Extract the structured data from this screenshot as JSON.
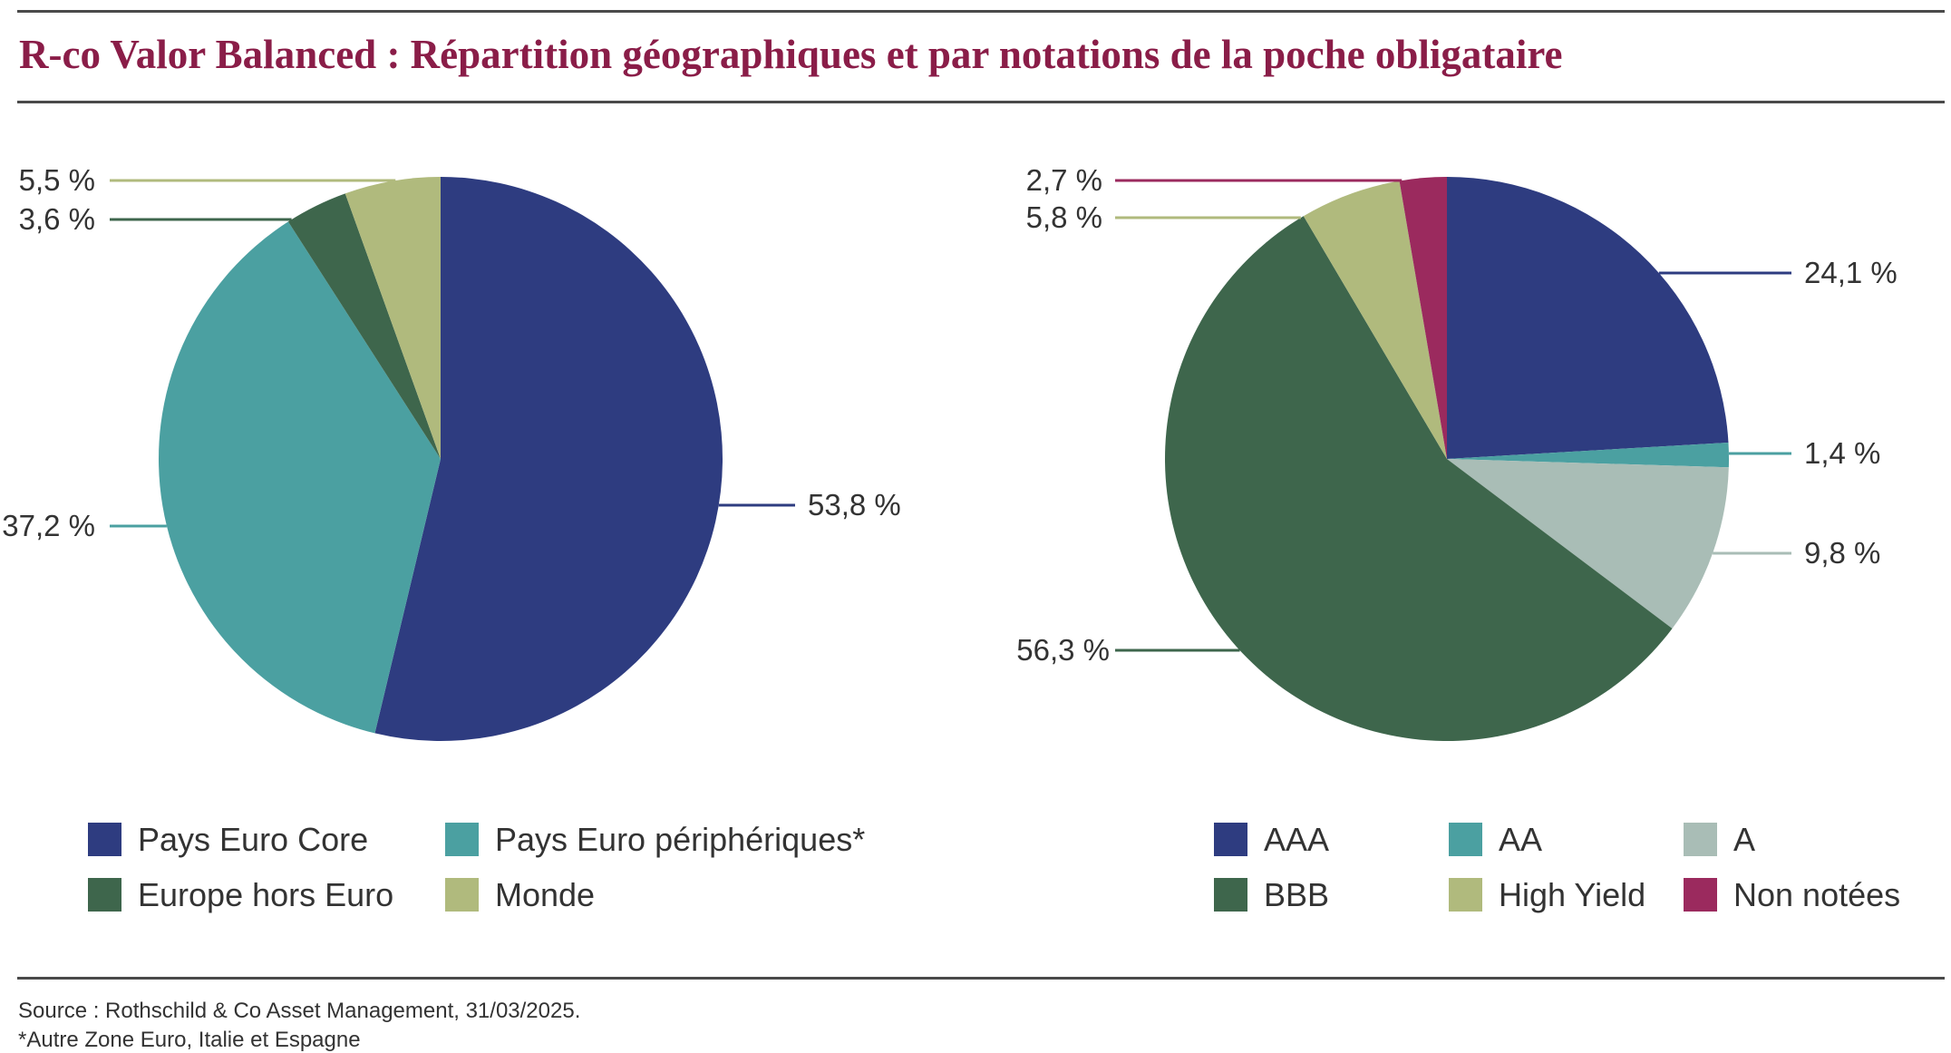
{
  "title": "R-co Valor Balanced : Répartition géographiques et par notations de la poche obligataire",
  "footer": {
    "source": "Source : Rothschild & Co Asset Management, 31/03/2025.",
    "note": "*Autre Zone Euro, Italie et Espagne"
  },
  "chart_data": [
    {
      "type": "pie",
      "title": "",
      "legend_position": "bottom",
      "slices": [
        {
          "name": "Pays Euro Core",
          "value": 53.8,
          "label": "53,8 %",
          "color": "#2e3c80"
        },
        {
          "name": "Pays Euro périphériques*",
          "value": 37.2,
          "label": "37,2 %",
          "color": "#4ba0a1"
        },
        {
          "name": "Europe hors Euro",
          "value": 3.6,
          "label": "3,6 %",
          "color": "#3e664c"
        },
        {
          "name": "Monde",
          "value": 5.5,
          "label": "5,5 %",
          "color": "#b0ba7d"
        }
      ]
    },
    {
      "type": "pie",
      "title": "",
      "legend_position": "bottom",
      "slices": [
        {
          "name": "AAA",
          "value": 24.1,
          "label": "24,1 %",
          "color": "#2e3c80"
        },
        {
          "name": "AA",
          "value": 1.4,
          "label": "1,4 %",
          "color": "#4ba0a1"
        },
        {
          "name": "A",
          "value": 9.8,
          "label": "9,8 %",
          "color": "#a9bdb6"
        },
        {
          "name": "BBB",
          "value": 56.3,
          "label": "56,3 %",
          "color": "#3e664c"
        },
        {
          "name": "High Yield",
          "value": 5.8,
          "label": "5,8 %",
          "color": "#b0ba7d"
        },
        {
          "name": "Non notées",
          "value": 2.7,
          "label": "2,7 %",
          "color": "#9b2a5e"
        }
      ]
    }
  ]
}
